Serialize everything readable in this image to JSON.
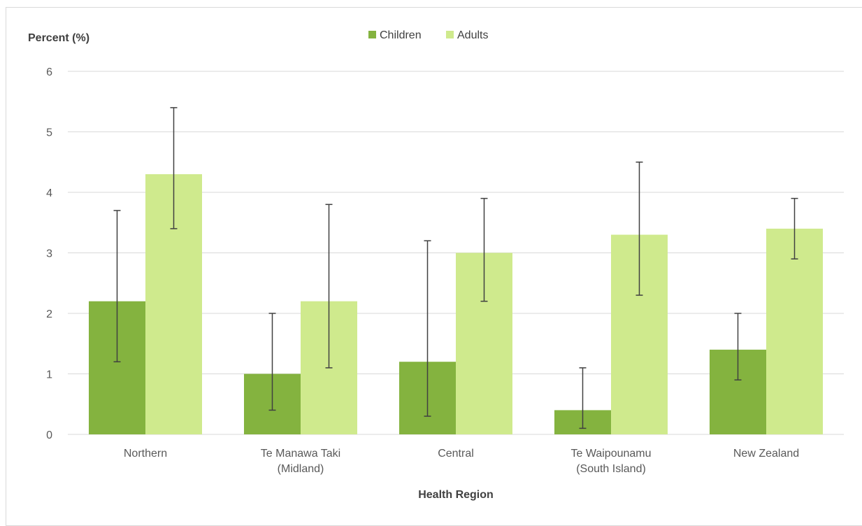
{
  "chart_data": {
    "type": "bar",
    "ylabel": "Percent (%)",
    "xlabel": "Health Region",
    "ylim": [
      0,
      6
    ],
    "yticks": [
      "0",
      "1",
      "2",
      "3",
      "4",
      "5",
      "6"
    ],
    "grid": true,
    "legend_position": "top-center",
    "categories": [
      [
        "Northern"
      ],
      [
        "Te Manawa Taki",
        "(Midland)"
      ],
      [
        "Central"
      ],
      [
        "Te Waipounamu",
        "(South Island)"
      ],
      [
        "New Zealand"
      ]
    ],
    "series": [
      {
        "name": "Children",
        "color": "#84b33f",
        "values": [
          2.2,
          1.0,
          1.2,
          0.4,
          1.4
        ],
        "error_low": [
          1.2,
          0.4,
          0.3,
          0.1,
          0.9
        ],
        "error_high": [
          3.7,
          2.0,
          3.2,
          1.1,
          2.0
        ]
      },
      {
        "name": "Adults",
        "color": "#cfea8d",
        "values": [
          4.3,
          2.2,
          3.0,
          3.3,
          3.4
        ],
        "error_low": [
          3.4,
          1.1,
          2.2,
          2.3,
          2.9
        ],
        "error_high": [
          5.4,
          3.8,
          3.9,
          4.5,
          3.9
        ]
      }
    ],
    "gridline_color": "#d9d9d9",
    "error_bar_color": "#404040"
  }
}
